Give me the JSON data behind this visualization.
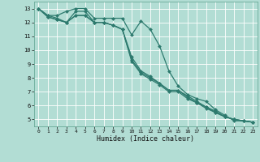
{
  "xlabel": "Humidex (Indice chaleur)",
  "ylabel": "",
  "bg_color": "#b2ddd4",
  "grid_color": "#ffffff",
  "line_color": "#2d7a6e",
  "xlim": [
    -0.5,
    23.5
  ],
  "ylim": [
    4.5,
    13.5
  ],
  "xticks": [
    0,
    1,
    2,
    3,
    4,
    5,
    6,
    7,
    8,
    9,
    10,
    11,
    12,
    13,
    14,
    15,
    16,
    17,
    18,
    19,
    20,
    21,
    22,
    23
  ],
  "yticks": [
    5,
    6,
    7,
    8,
    9,
    10,
    11,
    12,
    13
  ],
  "series": [
    {
      "x": [
        0,
        1,
        2,
        3,
        4,
        5,
        6,
        7,
        8,
        9,
        10,
        11,
        12,
        13,
        14,
        15,
        16,
        17,
        18,
        19,
        20,
        21,
        22,
        23
      ],
      "y": [
        13.0,
        12.5,
        12.5,
        12.8,
        13.0,
        13.0,
        12.3,
        12.3,
        12.3,
        12.3,
        11.1,
        12.1,
        11.5,
        10.3,
        8.5,
        7.4,
        6.8,
        6.5,
        6.3,
        5.7,
        5.3,
        4.9,
        4.9,
        4.8
      ],
      "marker": "D",
      "markersize": 2.0,
      "linewidth": 0.9
    },
    {
      "x": [
        0,
        1,
        2,
        3,
        4,
        5,
        6,
        7,
        8,
        9,
        10,
        11,
        12,
        13,
        14,
        15,
        16,
        17,
        18,
        19,
        20,
        21,
        22,
        23
      ],
      "y": [
        13.0,
        12.5,
        12.3,
        12.0,
        12.8,
        12.8,
        12.0,
        12.0,
        11.8,
        11.5,
        9.3,
        8.4,
        8.0,
        7.6,
        7.1,
        7.1,
        6.7,
        6.3,
        5.9,
        5.6,
        5.2,
        5.0,
        4.9,
        4.8
      ],
      "marker": "D",
      "markersize": 2.0,
      "linewidth": 0.9
    },
    {
      "x": [
        0,
        1,
        2,
        3,
        4,
        5,
        6,
        7,
        8,
        9,
        10,
        11,
        12,
        13,
        14,
        15,
        16,
        17,
        18,
        19,
        20,
        21,
        22,
        23
      ],
      "y": [
        13.0,
        12.4,
        12.2,
        12.0,
        12.5,
        12.5,
        12.0,
        12.0,
        11.8,
        11.5,
        9.5,
        8.5,
        8.1,
        7.6,
        7.1,
        7.1,
        6.6,
        6.2,
        5.9,
        5.5,
        5.2,
        5.0,
        4.9,
        4.8
      ],
      "marker": "D",
      "markersize": 2.0,
      "linewidth": 0.9
    },
    {
      "x": [
        0,
        1,
        2,
        3,
        4,
        5,
        6,
        7,
        8,
        9,
        10,
        11,
        12,
        13,
        14,
        15,
        16,
        17,
        18,
        19,
        20,
        21,
        22,
        23
      ],
      "y": [
        13.0,
        12.4,
        12.2,
        12.0,
        12.5,
        12.5,
        12.0,
        12.0,
        11.8,
        11.5,
        9.2,
        8.3,
        7.9,
        7.5,
        7.0,
        7.0,
        6.5,
        6.2,
        5.8,
        5.5,
        5.2,
        5.0,
        4.9,
        4.8
      ],
      "marker": "D",
      "markersize": 2.0,
      "linewidth": 0.9
    }
  ]
}
